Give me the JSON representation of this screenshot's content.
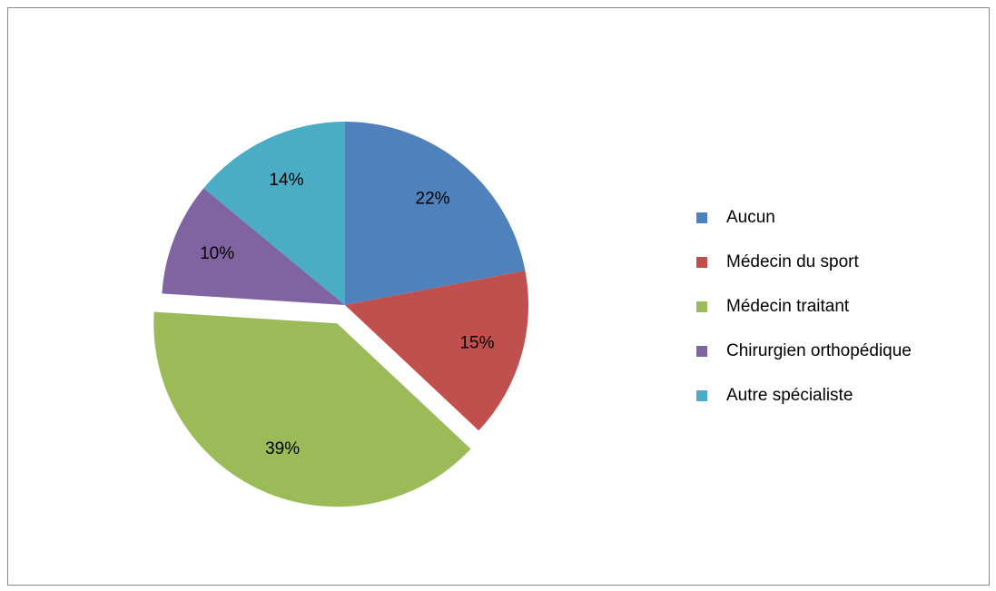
{
  "chart_data": {
    "type": "pie",
    "categories": [
      "Aucun",
      "Médecin du sport",
      "Médecin traitant",
      "Chirurgien orthopédique",
      "Autre spécialiste"
    ],
    "values": [
      22,
      15,
      39,
      10,
      14
    ],
    "value_labels": [
      "22%",
      "15%",
      "39%",
      "10%",
      "14%"
    ],
    "colors": [
      "#4f81bd",
      "#c0504d",
      "#9bbb59",
      "#8064a2",
      "#4bacc6"
    ],
    "exploded": [
      false,
      false,
      true,
      false,
      false
    ],
    "legend": "right"
  }
}
